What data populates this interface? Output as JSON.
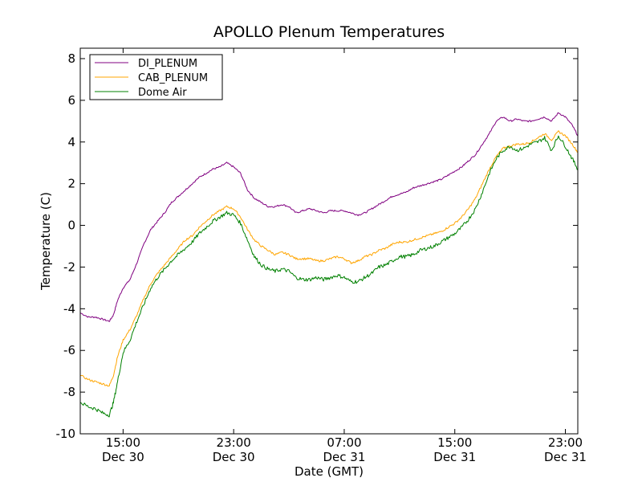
{
  "chart_data": {
    "type": "line",
    "title": "APOLLO Plenum Temperatures",
    "xlabel": "Date (GMT)",
    "ylabel": "Temperature (C)",
    "ylim": [
      -10,
      8.5
    ],
    "yticks": [
      -10,
      -8,
      -6,
      -4,
      -2,
      0,
      2,
      4,
      6,
      8
    ],
    "ytick_labels": [
      "-10",
      "-8",
      "-6",
      "-4",
      "-2",
      "0",
      "2",
      "4",
      "6",
      "8"
    ],
    "xlim_hours": [
      11.9,
      47.9
    ],
    "xticks": [
      {
        "hour": 15,
        "time": "15:00",
        "date": "Dec 30"
      },
      {
        "hour": 23,
        "time": "23:00",
        "date": "Dec 30"
      },
      {
        "hour": 31,
        "time": "07:00",
        "date": "Dec 31"
      },
      {
        "hour": 39,
        "time": "15:00",
        "date": "Dec 31"
      },
      {
        "hour": 47,
        "time": "23:00",
        "date": "Dec 31"
      }
    ],
    "x_unit_note": "hours since Dec 30 00:00 GMT",
    "legend_position": "top-left",
    "series": [
      {
        "name": "DI_PLENUM",
        "color": "#800080",
        "x": [
          11.9,
          12.5,
          13.0,
          13.5,
          14.0,
          14.3,
          14.6,
          15.0,
          15.5,
          16.0,
          16.5,
          17.0,
          17.5,
          18.0,
          18.5,
          19.0,
          19.5,
          20.0,
          20.5,
          21.0,
          21.5,
          22.0,
          22.5,
          23.0,
          23.5,
          24.0,
          24.5,
          25.0,
          25.5,
          26.0,
          26.5,
          27.0,
          27.5,
          28.0,
          28.5,
          29.0,
          29.5,
          30.0,
          30.5,
          31.0,
          31.5,
          32.0,
          32.5,
          33.0,
          33.5,
          34.0,
          34.5,
          35.0,
          35.5,
          36.0,
          36.5,
          37.0,
          37.5,
          38.0,
          38.5,
          39.0,
          39.5,
          40.0,
          40.5,
          41.0,
          41.5,
          42.0,
          42.5,
          43.0,
          43.5,
          44.0,
          44.5,
          45.0,
          45.5,
          46.0,
          46.5,
          47.0,
          47.5,
          47.9
        ],
        "values": [
          -4.2,
          -4.4,
          -4.4,
          -4.5,
          -4.6,
          -4.3,
          -3.6,
          -3.0,
          -2.6,
          -1.8,
          -0.9,
          -0.2,
          0.2,
          0.6,
          1.1,
          1.4,
          1.7,
          2.0,
          2.3,
          2.5,
          2.7,
          2.8,
          3.0,
          2.8,
          2.5,
          1.7,
          1.3,
          1.1,
          0.9,
          0.9,
          1.0,
          0.9,
          0.6,
          0.7,
          0.8,
          0.7,
          0.6,
          0.7,
          0.7,
          0.7,
          0.6,
          0.5,
          0.6,
          0.8,
          1.0,
          1.2,
          1.4,
          1.5,
          1.6,
          1.8,
          1.9,
          2.0,
          2.1,
          2.2,
          2.4,
          2.6,
          2.8,
          3.1,
          3.4,
          3.9,
          4.4,
          5.0,
          5.2,
          5.0,
          5.1,
          5.0,
          5.0,
          5.1,
          5.2,
          5.0,
          5.4,
          5.2,
          4.8,
          4.3
        ]
      },
      {
        "name": "CAB_PLENUM",
        "color": "#FFA500",
        "x": [
          11.9,
          12.5,
          13.0,
          13.5,
          14.0,
          14.3,
          14.6,
          15.0,
          15.5,
          16.0,
          16.5,
          17.0,
          17.5,
          18.0,
          18.5,
          19.0,
          19.5,
          20.0,
          20.5,
          21.0,
          21.5,
          22.0,
          22.5,
          23.0,
          23.5,
          24.0,
          24.5,
          25.0,
          25.5,
          26.0,
          26.5,
          27.0,
          27.5,
          28.0,
          28.5,
          29.0,
          29.5,
          30.0,
          30.5,
          31.0,
          31.5,
          32.0,
          32.5,
          33.0,
          33.5,
          34.0,
          34.5,
          35.0,
          35.5,
          36.0,
          36.5,
          37.0,
          37.5,
          38.0,
          38.5,
          39.0,
          39.5,
          40.0,
          40.5,
          41.0,
          41.5,
          42.0,
          42.5,
          43.0,
          43.5,
          44.0,
          44.5,
          45.0,
          45.5,
          46.0,
          46.5,
          47.0,
          47.5,
          47.9
        ],
        "values": [
          -7.2,
          -7.4,
          -7.5,
          -7.6,
          -7.7,
          -7.2,
          -6.3,
          -5.5,
          -5.0,
          -4.3,
          -3.5,
          -2.8,
          -2.3,
          -1.9,
          -1.5,
          -1.1,
          -0.7,
          -0.5,
          -0.1,
          0.2,
          0.5,
          0.7,
          0.9,
          0.8,
          0.4,
          -0.2,
          -0.7,
          -1.0,
          -1.2,
          -1.4,
          -1.3,
          -1.4,
          -1.6,
          -1.6,
          -1.6,
          -1.7,
          -1.7,
          -1.6,
          -1.5,
          -1.6,
          -1.8,
          -1.7,
          -1.5,
          -1.4,
          -1.2,
          -1.1,
          -0.9,
          -0.8,
          -0.8,
          -0.7,
          -0.6,
          -0.5,
          -0.4,
          -0.3,
          -0.1,
          0.1,
          0.4,
          0.8,
          1.3,
          2.0,
          2.7,
          3.3,
          3.7,
          3.8,
          3.9,
          3.9,
          4.0,
          4.2,
          4.4,
          4.1,
          4.5,
          4.3,
          3.9,
          3.5
        ]
      },
      {
        "name": "Dome Air",
        "color": "#008000",
        "x": [
          11.9,
          12.5,
          13.0,
          13.5,
          14.0,
          14.3,
          14.6,
          15.0,
          15.5,
          16.0,
          16.5,
          17.0,
          17.5,
          18.0,
          18.5,
          19.0,
          19.5,
          20.0,
          20.5,
          21.0,
          21.5,
          22.0,
          22.5,
          23.0,
          23.5,
          24.0,
          24.5,
          25.0,
          25.5,
          26.0,
          26.5,
          27.0,
          27.5,
          28.0,
          28.5,
          29.0,
          29.5,
          30.0,
          30.5,
          31.0,
          31.5,
          32.0,
          32.5,
          33.0,
          33.5,
          34.0,
          34.5,
          35.0,
          35.5,
          36.0,
          36.5,
          37.0,
          37.5,
          38.0,
          38.5,
          39.0,
          39.5,
          40.0,
          40.5,
          41.0,
          41.5,
          42.0,
          42.5,
          43.0,
          43.5,
          44.0,
          44.5,
          45.0,
          45.5,
          46.0,
          46.5,
          47.0,
          47.5,
          47.9
        ],
        "values": [
          -8.5,
          -8.7,
          -8.8,
          -9.0,
          -9.1,
          -8.5,
          -7.5,
          -6.1,
          -5.5,
          -4.6,
          -3.8,
          -3.0,
          -2.5,
          -2.1,
          -1.7,
          -1.4,
          -1.1,
          -0.8,
          -0.4,
          -0.1,
          0.2,
          0.4,
          0.6,
          0.5,
          0.1,
          -0.7,
          -1.5,
          -1.9,
          -2.1,
          -2.2,
          -2.1,
          -2.2,
          -2.5,
          -2.6,
          -2.6,
          -2.5,
          -2.6,
          -2.5,
          -2.4,
          -2.5,
          -2.7,
          -2.7,
          -2.5,
          -2.3,
          -2.0,
          -1.9,
          -1.7,
          -1.5,
          -1.5,
          -1.4,
          -1.2,
          -1.1,
          -1.0,
          -0.8,
          -0.6,
          -0.4,
          -0.1,
          0.3,
          0.8,
          1.6,
          2.5,
          3.2,
          3.6,
          3.8,
          3.6,
          3.7,
          3.9,
          4.0,
          4.2,
          3.6,
          4.3,
          3.8,
          3.2,
          2.7
        ]
      }
    ]
  }
}
